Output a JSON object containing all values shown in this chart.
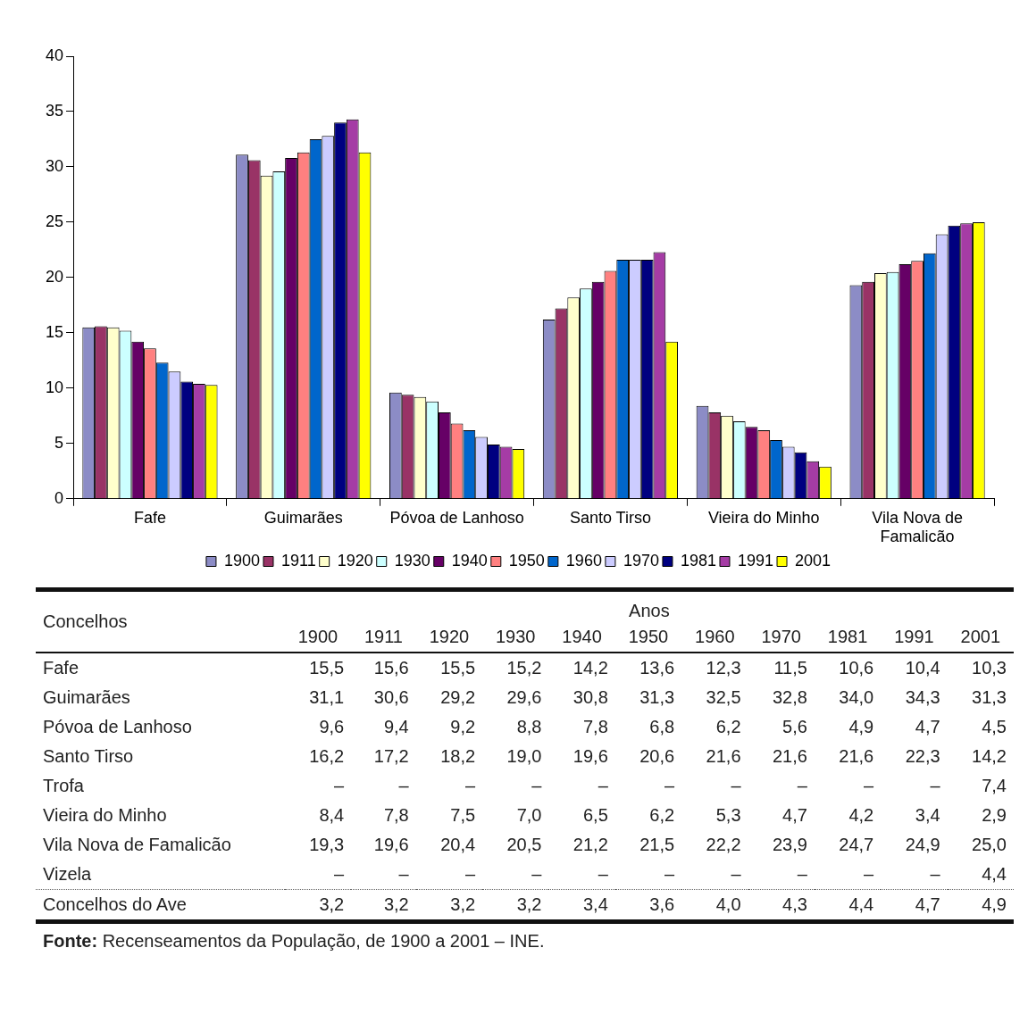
{
  "chart_data": [
    {
      "type": "bar",
      "categories": [
        "Fafe",
        "Guimarães",
        "Póvoa de Lanhoso",
        "Santo Tirso",
        "Vieira do Minho",
        "Vila Nova de Famalicão"
      ],
      "series": [
        {
          "name": "1900",
          "color": "#8c8cc6",
          "values": [
            15.5,
            31.1,
            9.6,
            16.2,
            8.4,
            19.3
          ]
        },
        {
          "name": "1911",
          "color": "#993366",
          "values": [
            15.6,
            30.6,
            9.4,
            17.2,
            7.8,
            19.6
          ]
        },
        {
          "name": "1920",
          "color": "#ffffcc",
          "values": [
            15.5,
            29.2,
            9.2,
            18.2,
            7.5,
            20.4
          ]
        },
        {
          "name": "1930",
          "color": "#ccffff",
          "values": [
            15.2,
            29.6,
            8.8,
            19.0,
            7.0,
            20.5
          ]
        },
        {
          "name": "1940",
          "color": "#660066",
          "values": [
            14.2,
            30.8,
            7.8,
            19.6,
            6.5,
            21.2
          ]
        },
        {
          "name": "1950",
          "color": "#ff8080",
          "values": [
            13.6,
            31.3,
            6.8,
            20.6,
            6.2,
            21.5
          ]
        },
        {
          "name": "1960",
          "color": "#0066cc",
          "values": [
            12.3,
            32.5,
            6.2,
            21.6,
            5.3,
            22.2
          ]
        },
        {
          "name": "1970",
          "color": "#ccccff",
          "values": [
            11.5,
            32.8,
            5.6,
            21.6,
            4.7,
            23.9
          ]
        },
        {
          "name": "1981",
          "color": "#000080",
          "values": [
            10.6,
            34.0,
            4.9,
            21.6,
            4.2,
            24.7
          ]
        },
        {
          "name": "1991",
          "color": "#a53ca5",
          "values": [
            10.4,
            34.3,
            4.7,
            22.3,
            3.4,
            24.9
          ]
        },
        {
          "name": "2001",
          "color": "#ffff00",
          "values": [
            10.3,
            31.3,
            4.5,
            14.2,
            2.9,
            25.0
          ]
        }
      ],
      "ylim": [
        0,
        40
      ],
      "yticks": [
        0,
        5,
        10,
        15,
        20,
        25,
        30,
        35,
        40
      ],
      "grid": false,
      "legend": "bottom"
    },
    {
      "type": "heatmap",
      "xlabel": "Anos",
      "ylabel": "Concelhos",
      "categories": [
        "1900",
        "1911",
        "1920",
        "1930",
        "1940",
        "1950",
        "1960",
        "1970",
        "1981",
        "1991",
        "2001"
      ],
      "y_categories": [
        "Fafe",
        "Guimarães",
        "Póvoa de Lanhoso",
        "Santo Tirso",
        "Trofa",
        "Vieira do Minho",
        "Vila Nova de Famalicão",
        "Vizela",
        "Concelhos do Ave"
      ],
      "cells": [
        [
          15.5,
          15.6,
          15.5,
          15.2,
          14.2,
          13.6,
          12.3,
          11.5,
          10.6,
          10.4,
          10.3
        ],
        [
          31.1,
          30.6,
          29.2,
          29.6,
          30.8,
          31.3,
          32.5,
          32.8,
          34.0,
          34.3,
          31.3
        ],
        [
          9.6,
          9.4,
          9.2,
          8.8,
          7.8,
          6.8,
          6.2,
          5.6,
          4.9,
          4.7,
          4.5
        ],
        [
          16.2,
          17.2,
          18.2,
          19.0,
          19.6,
          20.6,
          21.6,
          21.6,
          21.6,
          22.3,
          14.2
        ],
        [
          null,
          null,
          null,
          null,
          null,
          null,
          null,
          null,
          null,
          null,
          7.4
        ],
        [
          8.4,
          7.8,
          7.5,
          7.0,
          6.5,
          6.2,
          5.3,
          4.7,
          4.2,
          3.4,
          2.9
        ],
        [
          19.3,
          19.6,
          20.4,
          20.5,
          21.2,
          21.5,
          22.2,
          23.9,
          24.7,
          24.9,
          25.0
        ],
        [
          null,
          null,
          null,
          null,
          null,
          null,
          null,
          null,
          null,
          null,
          4.4
        ],
        [
          3.2,
          3.2,
          3.2,
          3.2,
          3.4,
          3.6,
          4.0,
          4.3,
          4.4,
          4.7,
          4.9
        ]
      ],
      "cell_labels": [
        [
          "15,5",
          "15,6",
          "15,5",
          "15,2",
          "14,2",
          "13,6",
          "12,3",
          "11,5",
          "10,6",
          "10,4",
          "10,3"
        ],
        [
          "31,1",
          "30,6",
          "29,2",
          "29,6",
          "30,8",
          "31,3",
          "32,5",
          "32,8",
          "34,0",
          "34,3",
          "31,3"
        ],
        [
          "9,6",
          "9,4",
          "9,2",
          "8,8",
          "7,8",
          "6,8",
          "6,2",
          "5,6",
          "4,9",
          "4,7",
          "4,5"
        ],
        [
          "16,2",
          "17,2",
          "18,2",
          "19,0",
          "19,6",
          "20,6",
          "21,6",
          "21,6",
          "21,6",
          "22,3",
          "14,2"
        ],
        [
          "–",
          "–",
          "–",
          "–",
          "–",
          "–",
          "–",
          "–",
          "–",
          "–",
          "7,4"
        ],
        [
          "8,4",
          "7,8",
          "7,5",
          "7,0",
          "6,5",
          "6,2",
          "5,3",
          "4,7",
          "4,2",
          "3,4",
          "2,9"
        ],
        [
          "19,3",
          "19,6",
          "20,4",
          "20,5",
          "21,2",
          "21,5",
          "22,2",
          "23,9",
          "24,7",
          "24,9",
          "25,0"
        ],
        [
          "–",
          "–",
          "–",
          "–",
          "–",
          "–",
          "–",
          "–",
          "–",
          "–",
          "4,4"
        ],
        [
          "3,2",
          "3,2",
          "3,2",
          "3,2",
          "3,4",
          "3,6",
          "4,0",
          "4,3",
          "4,4",
          "4,7",
          "4,9"
        ]
      ],
      "annotations": [
        "Fonte: Recenseamentos da População, de 1900 a 2001 – INE."
      ]
    }
  ]
}
